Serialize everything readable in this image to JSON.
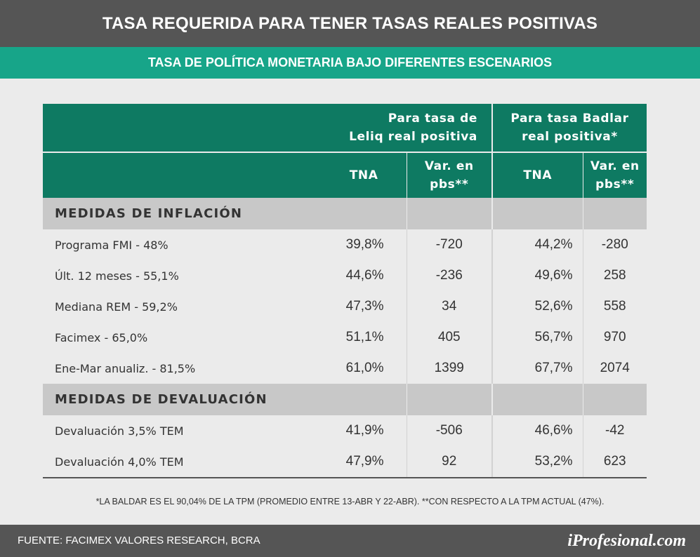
{
  "title": "TASA REQUERIDA PARA TENER TASAS REALES POSITIVAS",
  "subtitle": "TASA DE POLÍTICA MONETARIA BAJO DIFERENTES ESCENARIOS",
  "table": {
    "group_headers": [
      "Para tasa de Leliq real positiva",
      "Para tasa Badlar real positiva*"
    ],
    "group_header_lines": [
      [
        "Para tasa de",
        "Leliq real positiva"
      ],
      [
        "Para tasa Badlar",
        "real positiva*"
      ]
    ],
    "sub_headers": [
      {
        "line1": "TNA",
        "line2": ""
      },
      {
        "line1": "Var. en",
        "line2": "pbs**"
      },
      {
        "line1": "TNA",
        "line2": ""
      },
      {
        "line1": "Var. en",
        "line2": "pbs**"
      }
    ],
    "sections": [
      {
        "title": "MEDIDAS DE INFLACIÓN",
        "rows": [
          {
            "label": "Programa FMI - 48%",
            "tna1": "39,8%",
            "var1": "-720",
            "tna2": "44,2%",
            "var2": "-280"
          },
          {
            "label": "Últ. 12 meses - 55,1%",
            "tna1": "44,6%",
            "var1": "-236",
            "tna2": "49,6%",
            "var2": "258"
          },
          {
            "label": "Mediana REM - 59,2%",
            "tna1": "47,3%",
            "var1": "34",
            "tna2": "52,6%",
            "var2": "558"
          },
          {
            "label": "Facimex - 65,0%",
            "tna1": "51,1%",
            "var1": "405",
            "tna2": "56,7%",
            "var2": "970"
          },
          {
            "label": "Ene-Mar anualiz. - 81,5%",
            "tna1": "61,0%",
            "var1": "1399",
            "tna2": "67,7%",
            "var2": "2074"
          }
        ]
      },
      {
        "title": "MEDIDAS DE DEVALUACIÓN",
        "rows": [
          {
            "label": "Devaluación 3,5% TEM",
            "tna1": "41,9%",
            "var1": "-506",
            "tna2": "46,6%",
            "var2": "-42"
          },
          {
            "label": "Devaluación 4,0% TEM",
            "tna1": "47,9%",
            "var1": "92",
            "tna2": "53,2%",
            "var2": "623"
          }
        ]
      }
    ]
  },
  "footnote": "*LA BALDAR ES EL 90,04% DE LA TPM (PROMEDIO ENTRE 13-ABR Y 22-ABR). **CON RESPECTO A LA TPM ACTUAL (47%).",
  "source": "FUENTE: FACIMEX VALORES RESEARCH, BCRA",
  "brand": "iProfesional.com",
  "colors": {
    "title_bar": "#555555",
    "subtitle_bar": "#17a589",
    "header": "#0e7a62",
    "section": "#c8c8c8"
  }
}
